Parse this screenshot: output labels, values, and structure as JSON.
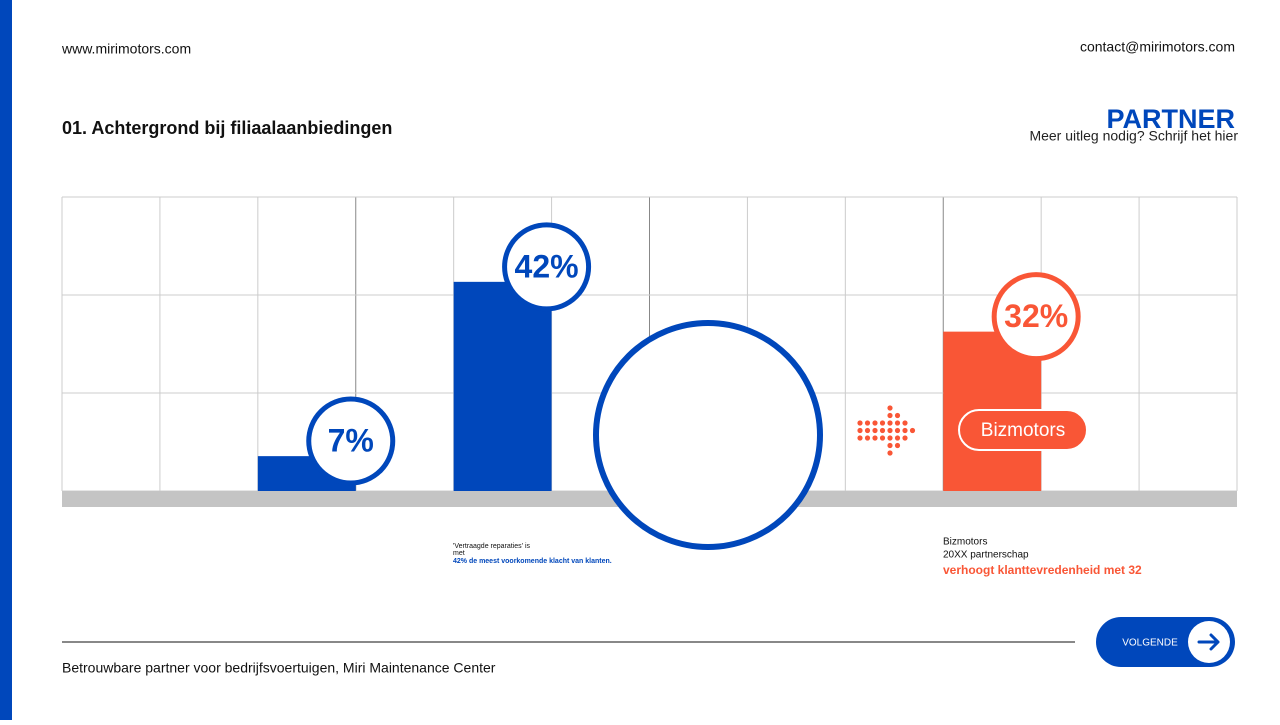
{
  "header": {
    "website": "www.mirimotors.com",
    "contact": "contact@mirimotors.com",
    "title": "01. Achtergrond bij filiaalaanbiedingen",
    "partner": "PARTNER",
    "partner_note": "Meer uitleg nodig? Schrijf het hier"
  },
  "chart": {
    "values": [
      7,
      42,
      32
    ],
    "value_labels": [
      "7%",
      "42%",
      "32%"
    ],
    "colors": [
      "#0047bb",
      "#0047bb",
      "#f95636"
    ]
  },
  "badge": "Bizmotors",
  "captions": [
    {
      "lines": [
        "'Vertraagde reparaties' is",
        "met",
        "42% de meest voorkomende klacht van klanten."
      ]
    },
    {
      "lines": [
        "Bizmotors",
        "20XX partnerschap",
        "verhoogt klanttevredenheid met 32"
      ]
    }
  ],
  "footer": {
    "text": "Betrouwbare partner voor bedrijfsvoertuigen, Miri Maintenance Center",
    "button": "VOLGENDE"
  }
}
